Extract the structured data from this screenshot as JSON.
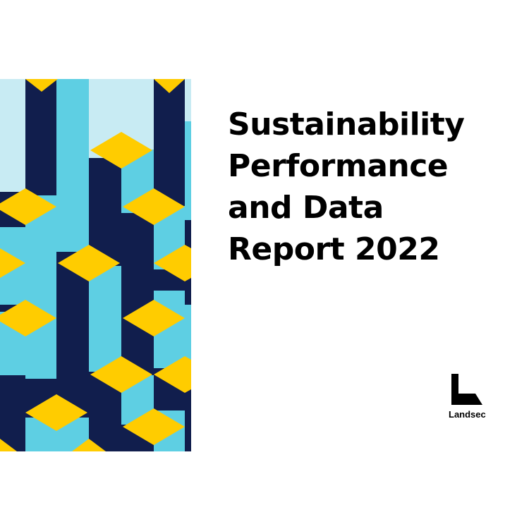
{
  "report": {
    "title_lines": [
      "Sustainability",
      "Performance",
      "and Data",
      "Report 2022"
    ]
  },
  "brand": {
    "name": "Landsec",
    "logo_icon": "landsec-l-mark-icon"
  },
  "colors": {
    "navy": "#111E4D",
    "cyan": "#5ECFE3",
    "pale_blue": "#C8EBF3",
    "yellow": "#FFCC00",
    "text": "#000000",
    "background": "#FFFFFF"
  }
}
